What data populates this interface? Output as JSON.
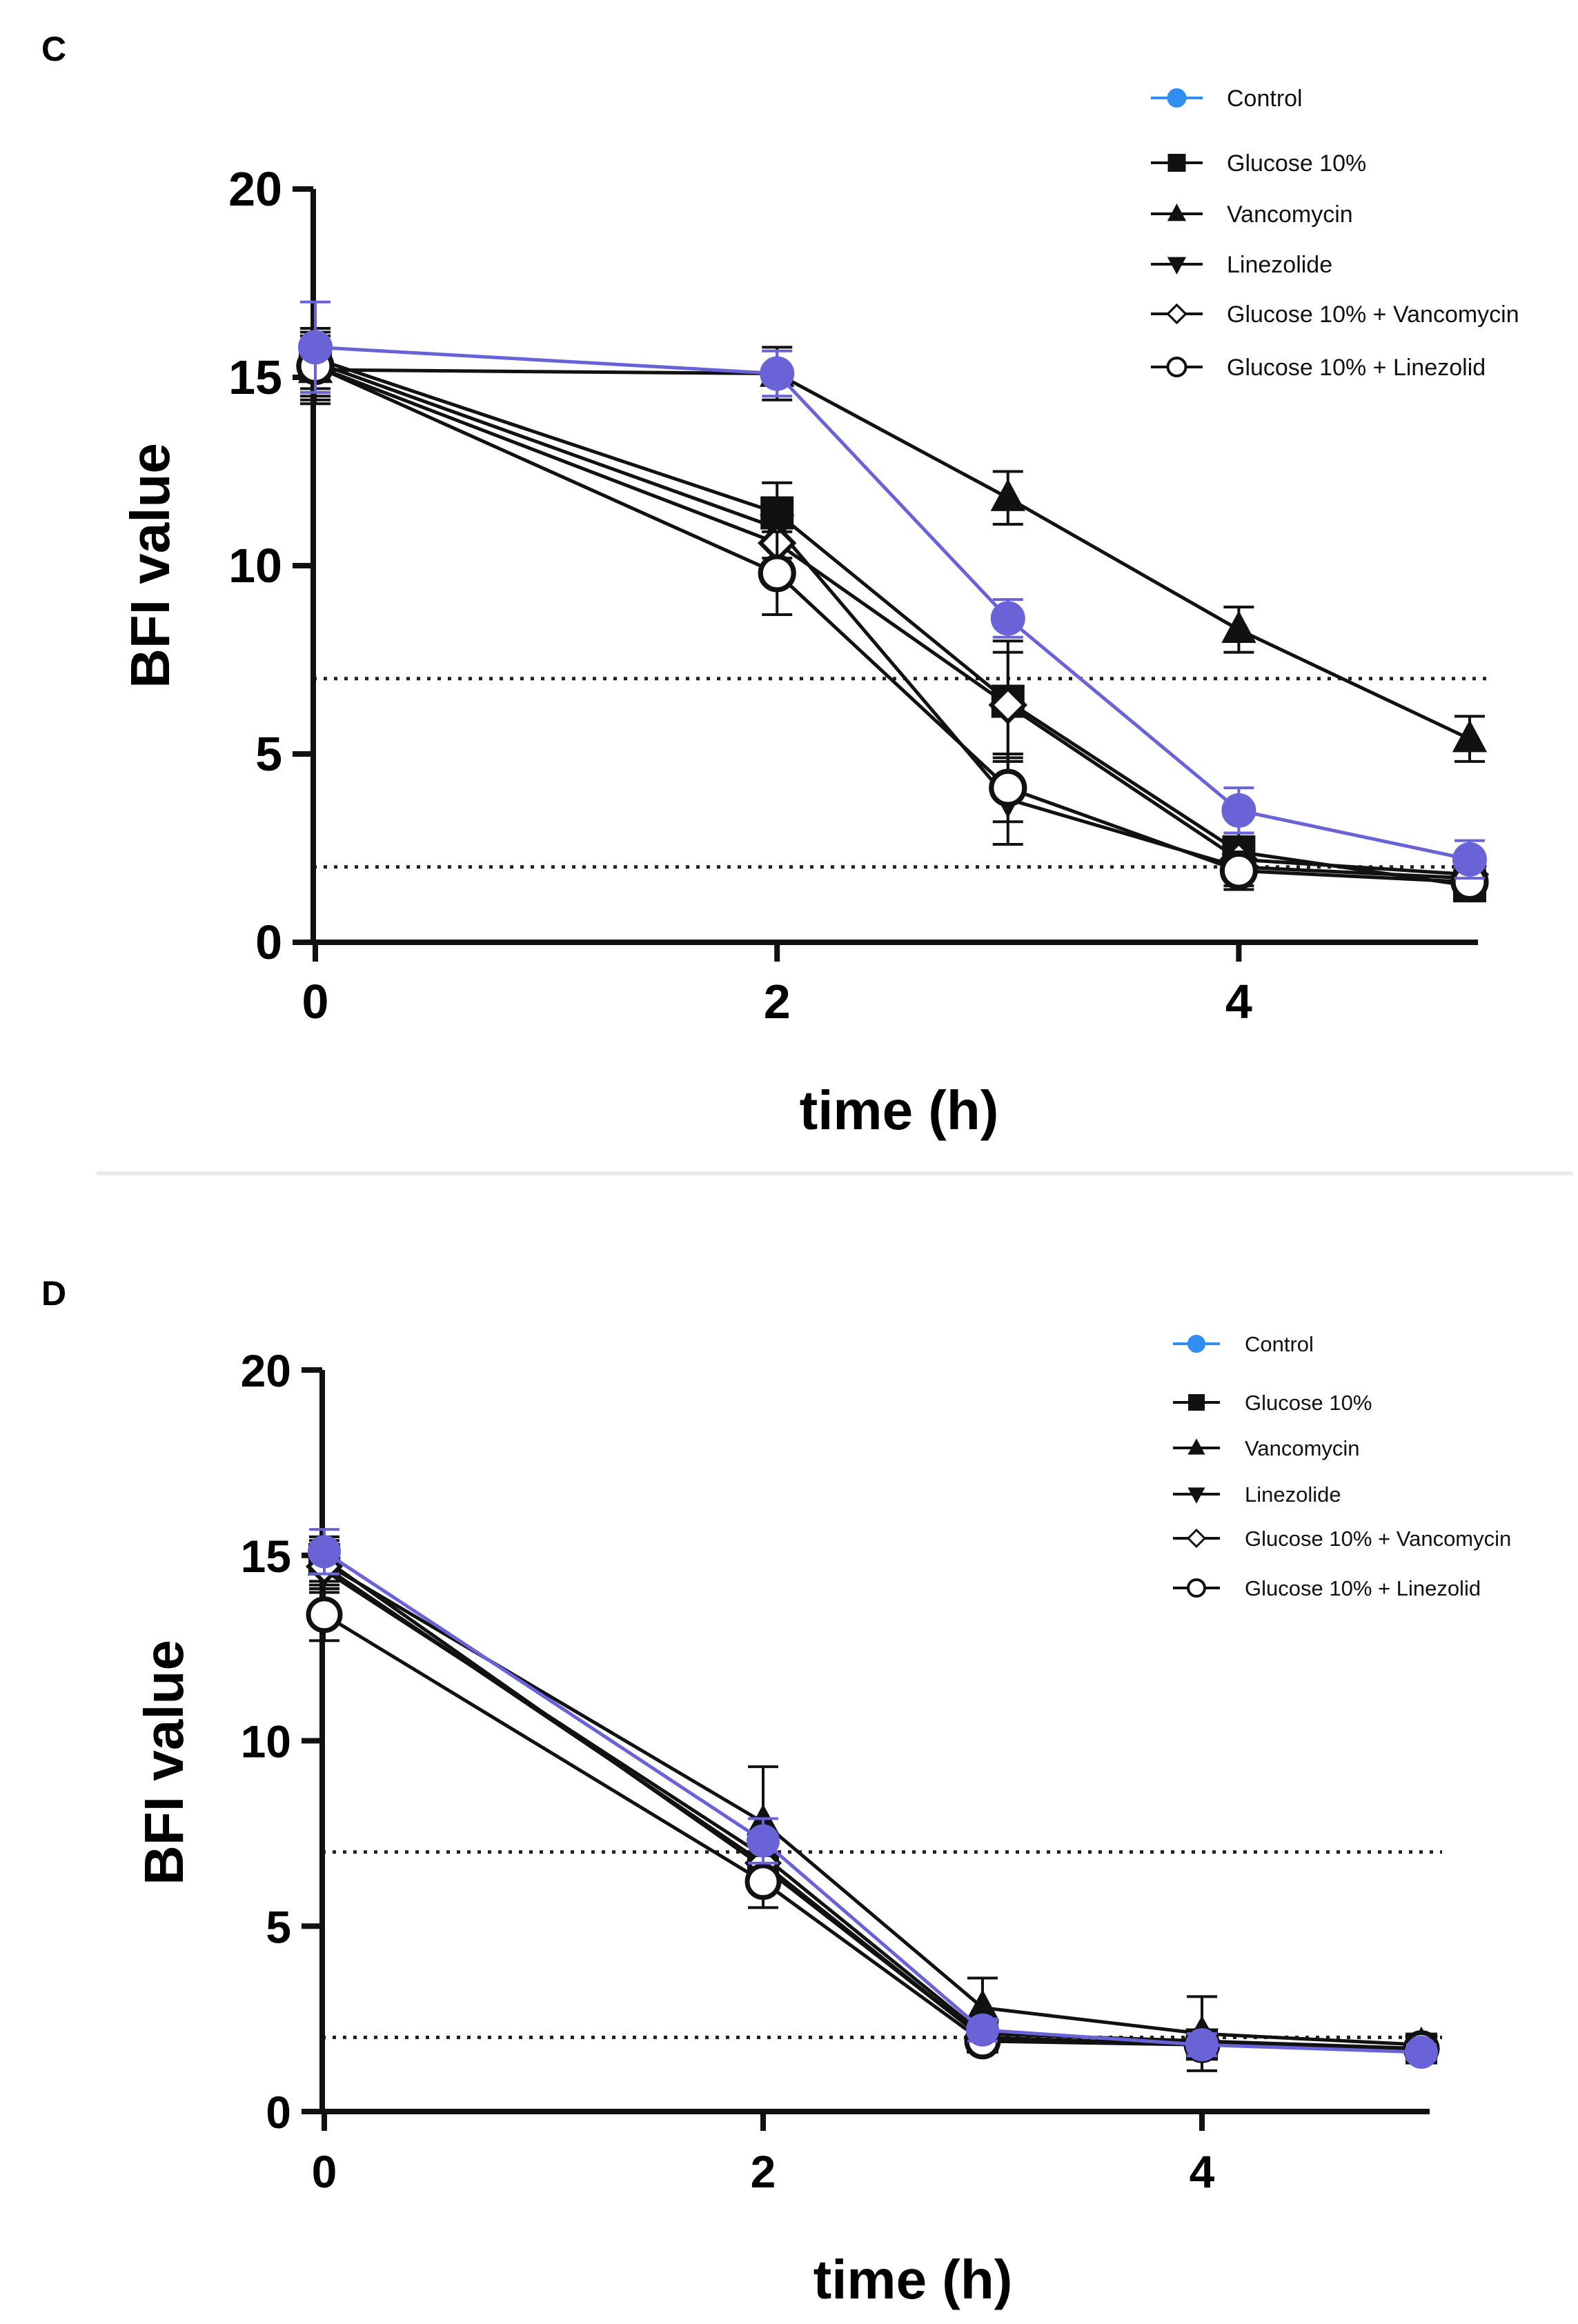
{
  "colors": {
    "control": "#6a63d8",
    "legend_control": "#2f8ef0",
    "series": "#111111",
    "reference_line": "#222222"
  },
  "chart_data": [
    {
      "panel_label": "C",
      "type": "line",
      "title": "",
      "xlabel": "time (h)",
      "ylabel": "BFI value",
      "xlim": [
        0,
        5
      ],
      "ylim": [
        0,
        20
      ],
      "x_ticks": [
        0,
        2,
        4
      ],
      "x_tick_labels": [
        "0",
        "2",
        "4"
      ],
      "y_ticks": [
        0,
        5,
        10,
        15,
        20
      ],
      "y_tick_labels": [
        "0",
        "5",
        "10",
        "15",
        "20"
      ],
      "x": [
        0,
        2,
        3,
        4,
        5
      ],
      "reference_lines": [
        7,
        2
      ],
      "legend_position": "top-right",
      "series": [
        {
          "name": "Control",
          "marker": "circle",
          "values": [
            15.8,
            15.1,
            8.6,
            3.5,
            2.2
          ],
          "errors": [
            1.2,
            0.6,
            0.5,
            0.6,
            0.5
          ]
        },
        {
          "name": "Glucose 10%",
          "marker": "square",
          "values": [
            15.5,
            11.4,
            6.4,
            2.4,
            1.5
          ],
          "errors": [
            0.8,
            0.8,
            1.6,
            0.5,
            0.4
          ]
        },
        {
          "name": "Vancomycin",
          "marker": "triangle-up",
          "values": [
            15.2,
            15.1,
            11.8,
            8.3,
            5.4
          ],
          "errors": [
            0.9,
            0.7,
            0.7,
            0.6,
            0.6
          ]
        },
        {
          "name": "Linezolide",
          "marker": "triangle-down",
          "values": [
            15.4,
            11.0,
            3.8,
            2.0,
            1.7
          ],
          "errors": [
            0.8,
            0.8,
            1.2,
            0.5,
            0.4
          ]
        },
        {
          "name": "Glucose 10% + Vancomycin",
          "marker": "diamond-open",
          "values": [
            15.3,
            10.6,
            6.3,
            2.2,
            1.8
          ],
          "errors": [
            0.8,
            0.8,
            1.4,
            0.5,
            0.4
          ]
        },
        {
          "name": "Glucose 10% + Linezolid",
          "marker": "circle-open",
          "values": [
            15.3,
            9.8,
            4.1,
            1.9,
            1.6
          ],
          "errors": [
            0.9,
            1.1,
            0.9,
            0.5,
            0.4
          ]
        }
      ]
    },
    {
      "panel_label": "D",
      "type": "line",
      "title": "",
      "xlabel": "time (h)",
      "ylabel": "BFI value",
      "xlim": [
        0,
        5
      ],
      "ylim": [
        0,
        20
      ],
      "x_ticks": [
        0,
        2,
        4
      ],
      "x_tick_labels": [
        "0",
        "2",
        "4"
      ],
      "y_ticks": [
        0,
        5,
        10,
        15,
        20
      ],
      "y_tick_labels": [
        "0",
        "5",
        "10",
        "15",
        "20"
      ],
      "x": [
        0,
        2,
        3,
        4,
        5
      ],
      "reference_lines": [
        7,
        2
      ],
      "legend_position": "top-right",
      "series": [
        {
          "name": "Control",
          "marker": "circle",
          "values": [
            15.1,
            7.3,
            2.2,
            1.8,
            1.6
          ],
          "errors": [
            0.6,
            0.6,
            0.3,
            0.3,
            0.2
          ]
        },
        {
          "name": "Glucose 10%",
          "marker": "square",
          "values": [
            14.9,
            6.6,
            2.0,
            1.8,
            1.7
          ],
          "errors": [
            0.6,
            0.6,
            0.3,
            0.3,
            0.2
          ]
        },
        {
          "name": "Vancomycin",
          "marker": "triangle-up",
          "values": [
            14.8,
            7.8,
            2.8,
            2.1,
            1.8
          ],
          "errors": [
            0.6,
            1.5,
            0.8,
            1.0,
            0.2
          ]
        },
        {
          "name": "Linezolide",
          "marker": "triangle-down",
          "values": [
            14.6,
            6.9,
            2.1,
            1.9,
            1.7
          ],
          "errors": [
            0.6,
            0.6,
            0.3,
            0.3,
            0.2
          ]
        },
        {
          "name": "Glucose 10% + Vancomycin",
          "marker": "diamond-open",
          "values": [
            14.7,
            6.7,
            2.0,
            1.8,
            1.7
          ],
          "errors": [
            0.6,
            0.6,
            0.3,
            0.3,
            0.2
          ]
        },
        {
          "name": "Glucose 10% + Linezolid",
          "marker": "circle-open",
          "values": [
            13.4,
            6.2,
            1.9,
            1.8,
            1.7
          ],
          "errors": [
            0.7,
            0.7,
            0.3,
            0.3,
            0.2
          ]
        }
      ]
    }
  ]
}
